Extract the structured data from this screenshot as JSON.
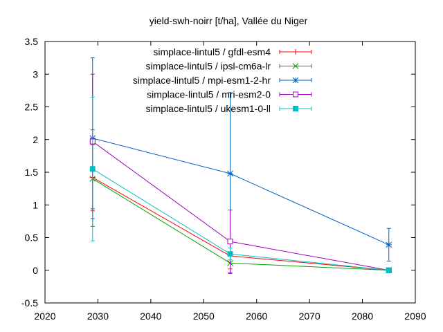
{
  "chart_data": {
    "type": "line",
    "title": "yield-swh-noirr [t/ha], Vallée du Niger",
    "xlabel": "",
    "ylabel": "",
    "xlim": [
      2020,
      2090
    ],
    "ylim": [
      -0.5,
      3.5
    ],
    "xticks": [
      2020,
      2030,
      2040,
      2050,
      2060,
      2070,
      2080,
      2090
    ],
    "yticks": [
      -0.5,
      0,
      0.5,
      1,
      1.5,
      2,
      2.5,
      3,
      3.5
    ],
    "xtick_labels": [
      "2020",
      "2030",
      "2040",
      "2050",
      "2060",
      "2070",
      "2080",
      "2090"
    ],
    "ytick_labels": [
      "-0.5",
      "0",
      "0.5",
      "1",
      "1.5",
      "2",
      "2.5",
      "3",
      "3.5"
    ],
    "grid": false,
    "legend_position": "top-right",
    "x": [
      2029,
      2055,
      2085
    ],
    "series": [
      {
        "name": "simplace-lintul5 / gfdl-esm4",
        "color": "#ff0000",
        "marker": "plus",
        "values": [
          1.42,
          0.22,
          0.0
        ],
        "err_low": [
          0.91,
          0.02,
          0.0
        ],
        "err_high": [
          1.92,
          0.42,
          0.0
        ]
      },
      {
        "name": "simplace-lintul5 / ipsl-cm6a-lr",
        "color": "#00a000",
        "marker": "cross",
        "values": [
          1.4,
          0.11,
          0.0
        ],
        "err_low": [
          0.67,
          -0.05,
          0.0
        ],
        "err_high": [
          2.15,
          0.27,
          0.0
        ]
      },
      {
        "name": "simplace-lintul5 / mpi-esm1-2-hr",
        "color": "#0060c0",
        "marker": "star",
        "values": [
          2.02,
          1.48,
          0.39
        ],
        "err_low": [
          0.79,
          0.24,
          0.14
        ],
        "err_high": [
          3.25,
          2.72,
          0.64
        ]
      },
      {
        "name": "simplace-lintul5 / mri-esm2-0",
        "color": "#a000c0",
        "marker": "square-open",
        "values": [
          1.97,
          0.44,
          0.0
        ],
        "err_low": [
          0.94,
          -0.04,
          0.0
        ],
        "err_high": [
          3.0,
          0.92,
          0.0
        ]
      },
      {
        "name": "simplace-lintul5 / ukesm1-0-ll",
        "color": "#00c0c0",
        "marker": "square-filled",
        "values": [
          1.55,
          0.25,
          0.0
        ],
        "err_low": [
          0.45,
          0.16,
          0.0
        ],
        "err_high": [
          2.65,
          0.34,
          0.0
        ]
      }
    ]
  }
}
